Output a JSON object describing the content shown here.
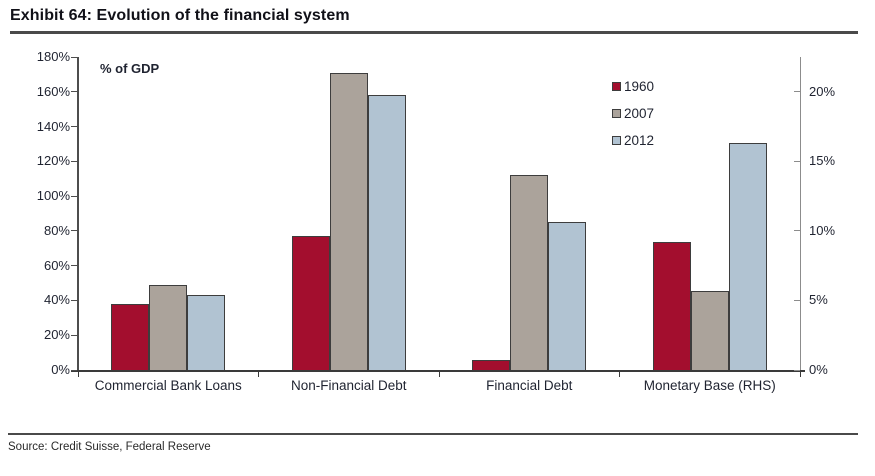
{
  "title": "Exhibit 64: Evolution of the financial system",
  "source": "Source: Credit Suisse, Federal Reserve",
  "chart_data": {
    "type": "bar",
    "title": "Exhibit 64: Evolution of the financial system",
    "annotation": "% of GDP",
    "categories": [
      "Commercial Bank Loans",
      "Non-Financial Debt",
      "Financial Debt",
      "Monetary Base (RHS)"
    ],
    "series": [
      {
        "name": "1960",
        "color": "#A30E2E",
        "values": [
          38,
          77,
          6,
          9.2
        ]
      },
      {
        "name": "2007",
        "color": "#ABA39B",
        "values": [
          49,
          171,
          112,
          5.7
        ]
      },
      {
        "name": "2012",
        "color": "#B1C3D2",
        "values": [
          43,
          158,
          85,
          16.3
        ]
      }
    ],
    "left_axis": {
      "min": 0,
      "max": 180,
      "step": 20,
      "tick_suffix": "%",
      "tick_labels": [
        "0%",
        "20%",
        "40%",
        "60%",
        "80%",
        "100%",
        "120%",
        "140%",
        "160%",
        "180%"
      ],
      "applies_to_categories": [
        0,
        1,
        2
      ]
    },
    "right_axis": {
      "min": 0,
      "max": 22.5,
      "step": 5,
      "tick_suffix": "%",
      "tick_labels": [
        "0%",
        "5%",
        "10%",
        "15%",
        "20%"
      ],
      "applies_to_categories": [
        3
      ]
    },
    "legend_position": "top-right-inside",
    "grid": false,
    "bar_border_color": "#3d3d3d"
  }
}
